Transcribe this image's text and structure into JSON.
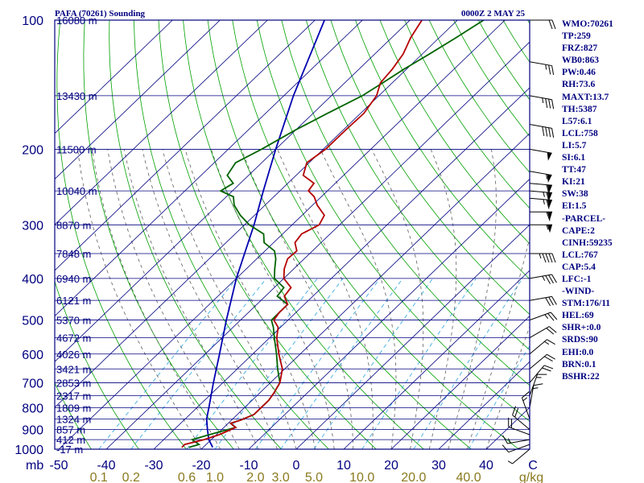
{
  "header": {
    "station_title": "PAFA (70261) Sounding",
    "datetime": "0000Z  2 MAY 25"
  },
  "indices": [
    "WMO:70261",
    "TP:259",
    "FRZ:827",
    "WB0:863",
    "PW:0.46",
    "RH:73.6",
    "MAXT:13.7",
    "TH:5387",
    "L57:6.1",
    "LCL:758",
    "LI:5.7",
    "SI:6.1",
    "TT:47",
    "KI:21",
    "SW:38",
    "EI:1.5",
    "-PARCEL-",
    "CAPE:2",
    "CINH:59235",
    "LCL:767",
    "CAP:5.4",
    "LFC:-1",
    "-WIND-",
    "STM:176/11",
    "HEL:69",
    "SHR+:0.0",
    "SRDS:90",
    "EHI:0.0",
    "BRN:0.1",
    "BSHR:22"
  ],
  "chart_data": {
    "type": "skew-t log-p sounding",
    "pressure_axis": {
      "unit_label": "mb",
      "range": [
        1000,
        100
      ],
      "ticks": [
        {
          "p": 100,
          "label": "100"
        },
        {
          "p": 200,
          "label": "200"
        },
        {
          "p": 300,
          "label": "300"
        },
        {
          "p": 400,
          "label": "400"
        },
        {
          "p": 500,
          "label": "500"
        },
        {
          "p": 600,
          "label": "600"
        },
        {
          "p": 700,
          "label": "700"
        },
        {
          "p": 800,
          "label": "800"
        },
        {
          "p": 900,
          "label": "900"
        },
        {
          "p": 1000,
          "label": "1000"
        }
      ]
    },
    "temperature_axis": {
      "unit_label": "C",
      "range": [
        -50,
        50
      ],
      "ticks": [
        {
          "t": -50,
          "label": "-50"
        },
        {
          "t": -40,
          "label": "-40"
        },
        {
          "t": -30,
          "label": "-30"
        },
        {
          "t": -20,
          "label": "-20"
        },
        {
          "t": -10,
          "label": "-10"
        },
        {
          "t": 0,
          "label": "0"
        },
        {
          "t": 10,
          "label": "10"
        },
        {
          "t": 20,
          "label": "20"
        },
        {
          "t": 30,
          "label": "30"
        },
        {
          "t": 40,
          "label": "40"
        }
      ]
    },
    "mixing_ratio_axis": {
      "unit_label": "g/kg",
      "ticks": [
        {
          "w": 0.1,
          "label": "0.1"
        },
        {
          "w": 0.2,
          "label": "0.2"
        },
        {
          "w": 0.6,
          "label": "0.6"
        },
        {
          "w": 1.0,
          "label": "1.0"
        },
        {
          "w": 2.0,
          "label": "2.0"
        },
        {
          "w": 3.0,
          "label": "3.0"
        },
        {
          "w": 5.0,
          "label": "5.0"
        },
        {
          "w": 10.0,
          "label": "10.0"
        },
        {
          "w": 20.0,
          "label": "20.0"
        },
        {
          "w": 40.0,
          "label": "40.0"
        }
      ]
    },
    "height_labels": [
      {
        "p": 100,
        "label": "16080 m"
      },
      {
        "p": 150,
        "label": "13430 m"
      },
      {
        "p": 200,
        "label": "11500 m"
      },
      {
        "p": 250,
        "label": "10040 m"
      },
      {
        "p": 300,
        "label": "8870 m"
      },
      {
        "p": 350,
        "label": "7848 m"
      },
      {
        "p": 400,
        "label": "6940 m"
      },
      {
        "p": 450,
        "label": "6121 m"
      },
      {
        "p": 500,
        "label": "5370 m"
      },
      {
        "p": 550,
        "label": "4672 m"
      },
      {
        "p": 600,
        "label": "4026 m"
      },
      {
        "p": 650,
        "label": "3421 m"
      },
      {
        "p": 700,
        "label": "2853 m"
      },
      {
        "p": 750,
        "label": "2317 m"
      },
      {
        "p": 800,
        "label": "1809 m"
      },
      {
        "p": 850,
        "label": "1324 m"
      },
      {
        "p": 900,
        "label": "857 m"
      },
      {
        "p": 950,
        "label": "412 m"
      },
      {
        "p": 1000,
        "label": "-17 m"
      }
    ],
    "temperature_profile": [
      {
        "p": 990,
        "t": -24.5
      },
      {
        "p": 975,
        "t": -24.5
      },
      {
        "p": 950,
        "t": -21.5
      },
      {
        "p": 925,
        "t": -19.4
      },
      {
        "p": 890,
        "t": -17.5
      },
      {
        "p": 870,
        "t": -19.5
      },
      {
        "p": 855,
        "t": -18.0
      },
      {
        "p": 830,
        "t": -16.5
      },
      {
        "p": 800,
        "t": -16.5
      },
      {
        "p": 770,
        "t": -16.5
      },
      {
        "p": 740,
        "t": -17.0
      },
      {
        "p": 700,
        "t": -18.0
      },
      {
        "p": 650,
        "t": -20.5
      },
      {
        "p": 600,
        "t": -24.5
      },
      {
        "p": 550,
        "t": -28.5
      },
      {
        "p": 520,
        "t": -30.5
      },
      {
        "p": 500,
        "t": -33.0
      },
      {
        "p": 480,
        "t": -33.5
      },
      {
        "p": 460,
        "t": -33.5
      },
      {
        "p": 440,
        "t": -36.0
      },
      {
        "p": 420,
        "t": -36.5
      },
      {
        "p": 400,
        "t": -40.0
      },
      {
        "p": 380,
        "t": -42.0
      },
      {
        "p": 360,
        "t": -43.5
      },
      {
        "p": 345,
        "t": -43.3
      },
      {
        "p": 330,
        "t": -45.5
      },
      {
        "p": 315,
        "t": -46.0
      },
      {
        "p": 300,
        "t": -44.3
      },
      {
        "p": 285,
        "t": -45.3
      },
      {
        "p": 270,
        "t": -49.0
      },
      {
        "p": 258,
        "t": -51.5
      },
      {
        "p": 250,
        "t": -54.0
      },
      {
        "p": 240,
        "t": -54.5
      },
      {
        "p": 230,
        "t": -58.5
      },
      {
        "p": 215,
        "t": -60.5
      },
      {
        "p": 200,
        "t": -59.5
      },
      {
        "p": 180,
        "t": -59.5
      },
      {
        "p": 165,
        "t": -59.3
      },
      {
        "p": 150,
        "t": -60.5
      },
      {
        "p": 140,
        "t": -62.5
      },
      {
        "p": 130,
        "t": -63.0
      },
      {
        "p": 120,
        "t": -64.0
      },
      {
        "p": 110,
        "t": -66.0
      },
      {
        "p": 100,
        "t": -67.5
      }
    ],
    "dewpoint_profile": [
      {
        "p": 990,
        "t": -23.0
      },
      {
        "p": 975,
        "t": -21.5
      },
      {
        "p": 950,
        "t": -24.0
      },
      {
        "p": 925,
        "t": -21.5
      },
      {
        "p": 890,
        "t": -17.5
      },
      {
        "p": 870,
        "t": -19.5
      },
      {
        "p": 855,
        "t": -18.0
      },
      {
        "p": 830,
        "t": -16.5
      },
      {
        "p": 800,
        "t": -16.5
      },
      {
        "p": 770,
        "t": -16.5
      },
      {
        "p": 740,
        "t": -17.0
      },
      {
        "p": 700,
        "t": -18.0
      },
      {
        "p": 650,
        "t": -21.5
      },
      {
        "p": 600,
        "t": -25.0
      },
      {
        "p": 550,
        "t": -29.0
      },
      {
        "p": 520,
        "t": -31.5
      },
      {
        "p": 500,
        "t": -33.5
      },
      {
        "p": 480,
        "t": -33.5
      },
      {
        "p": 460,
        "t": -33.5
      },
      {
        "p": 440,
        "t": -37.5
      },
      {
        "p": 420,
        "t": -38.0
      },
      {
        "p": 400,
        "t": -42.0
      },
      {
        "p": 380,
        "t": -44.0
      },
      {
        "p": 360,
        "t": -46.0
      },
      {
        "p": 345,
        "t": -48.0
      },
      {
        "p": 330,
        "t": -52.0
      },
      {
        "p": 315,
        "t": -54.0
      },
      {
        "p": 300,
        "t": -59.0
      },
      {
        "p": 285,
        "t": -63.0
      },
      {
        "p": 270,
        "t": -66.5
      },
      {
        "p": 258,
        "t": -68.5
      },
      {
        "p": 250,
        "t": -72.5
      },
      {
        "p": 240,
        "t": -71.5
      },
      {
        "p": 230,
        "t": -74.5
      },
      {
        "p": 215,
        "t": -75.5
      },
      {
        "p": 200,
        "t": -73.0
      },
      {
        "p": 180,
        "t": -70.0
      },
      {
        "p": 165,
        "t": -67.0
      },
      {
        "p": 150,
        "t": -63.5
      },
      {
        "p": 140,
        "t": -62.0
      },
      {
        "p": 130,
        "t": -60.5
      },
      {
        "p": 120,
        "t": -58.5
      },
      {
        "p": 110,
        "t": -56.5
      },
      {
        "p": 100,
        "t": -54.5
      }
    ],
    "parcel_path": [
      {
        "p": 990,
        "t": -18.0
      },
      {
        "p": 950,
        "t": -20.5
      },
      {
        "p": 900,
        "t": -23.0
      },
      {
        "p": 850,
        "t": -25.5
      },
      {
        "p": 800,
        "t": -27.5
      },
      {
        "p": 700,
        "t": -32.0
      },
      {
        "p": 600,
        "t": -37.0
      },
      {
        "p": 500,
        "t": -43.0
      },
      {
        "p": 400,
        "t": -50.0
      },
      {
        "p": 300,
        "t": -58.0
      },
      {
        "p": 250,
        "t": -63.5
      },
      {
        "p": 200,
        "t": -70.0
      },
      {
        "p": 150,
        "t": -78.0
      },
      {
        "p": 100,
        "t": -88.0
      }
    ],
    "wind_barbs": [
      {
        "p": 1000,
        "dir": 50,
        "spd": 5
      },
      {
        "p": 975,
        "dir": 70,
        "spd": 10
      },
      {
        "p": 950,
        "dir": 80,
        "spd": 15
      },
      {
        "p": 925,
        "dir": 110,
        "spd": 20
      },
      {
        "p": 900,
        "dir": 130,
        "spd": 20
      },
      {
        "p": 850,
        "dir": 160,
        "spd": 15
      },
      {
        "p": 800,
        "dir": 190,
        "spd": 15
      },
      {
        "p": 750,
        "dir": 200,
        "spd": 15
      },
      {
        "p": 700,
        "dir": 220,
        "spd": 20
      },
      {
        "p": 650,
        "dir": 230,
        "spd": 20
      },
      {
        "p": 600,
        "dir": 230,
        "spd": 15
      },
      {
        "p": 550,
        "dir": 240,
        "spd": 20
      },
      {
        "p": 500,
        "dir": 250,
        "spd": 25
      },
      {
        "p": 450,
        "dir": 260,
        "spd": 30
      },
      {
        "p": 400,
        "dir": 260,
        "spd": 35
      },
      {
        "p": 350,
        "dir": 270,
        "spd": 45
      },
      {
        "p": 300,
        "dir": 270,
        "spd": 55
      },
      {
        "p": 280,
        "dir": 270,
        "spd": 60
      },
      {
        "p": 260,
        "dir": 275,
        "spd": 65
      },
      {
        "p": 250,
        "dir": 275,
        "spd": 65
      },
      {
        "p": 240,
        "dir": 275,
        "spd": 60
      },
      {
        "p": 225,
        "dir": 280,
        "spd": 55
      },
      {
        "p": 200,
        "dir": 280,
        "spd": 50
      },
      {
        "p": 175,
        "dir": 280,
        "spd": 40
      },
      {
        "p": 150,
        "dir": 280,
        "spd": 35
      },
      {
        "p": 125,
        "dir": 280,
        "spd": 25
      },
      {
        "p": 100,
        "dir": 270,
        "spd": 20
      }
    ],
    "colors": {
      "frame": "#000080",
      "isobar": "#000080",
      "isotherm": "#000080",
      "dry_adiabat": "#00a000",
      "moist_adiabat": "#5e5e5e",
      "mixing_ratio": "#2aa4e0",
      "temperature": "#b40000",
      "dewpoint": "#006400",
      "parcel": "#0000b0",
      "wind": "#000000",
      "mixing_label": "#8a7a1e"
    }
  }
}
